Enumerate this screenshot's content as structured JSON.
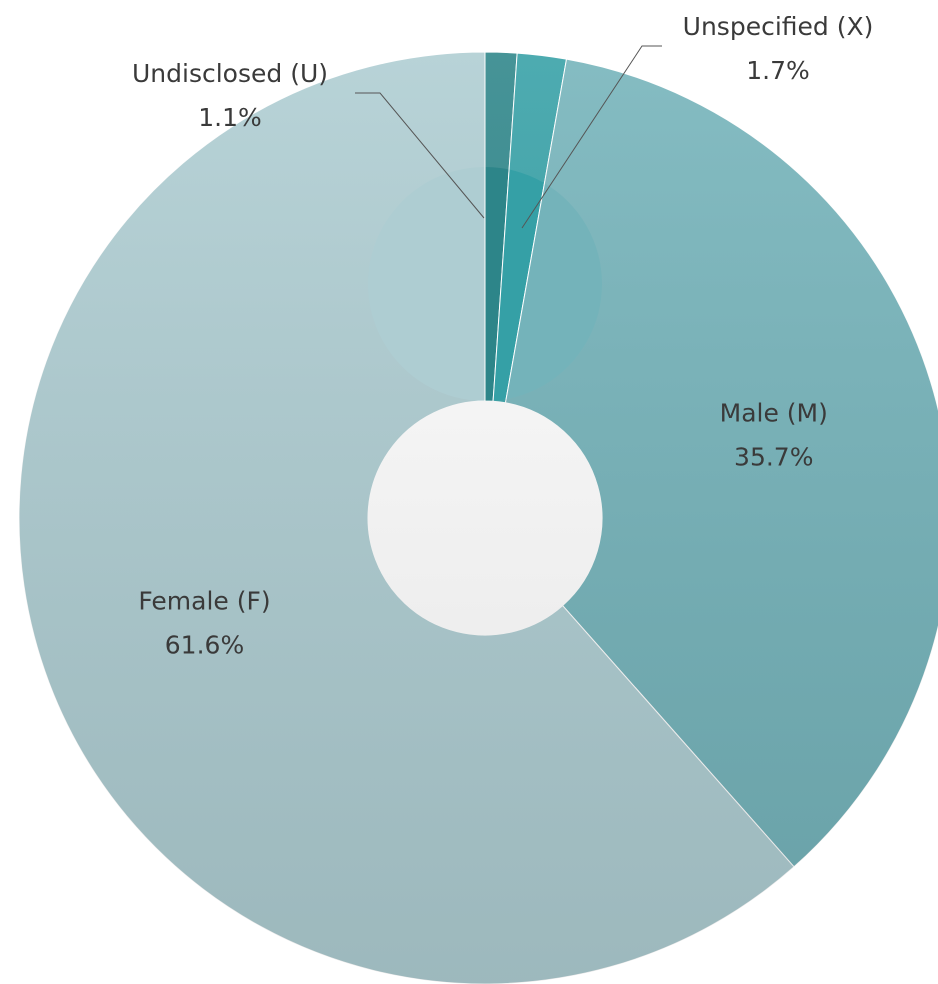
{
  "chart_data": {
    "type": "pie",
    "categories": [
      "Undisclosed (U)",
      "Unspecified (X)",
      "Male (M)",
      "Female (F)"
    ],
    "values": [
      1.1,
      1.7,
      35.7,
      61.6
    ],
    "value_labels": [
      "1.1%",
      "1.7%",
      "35.7%",
      "61.6%"
    ],
    "colors": [
      "#2d8589",
      "#35a0a6",
      "#74b3ba",
      "#aecdd2"
    ]
  }
}
